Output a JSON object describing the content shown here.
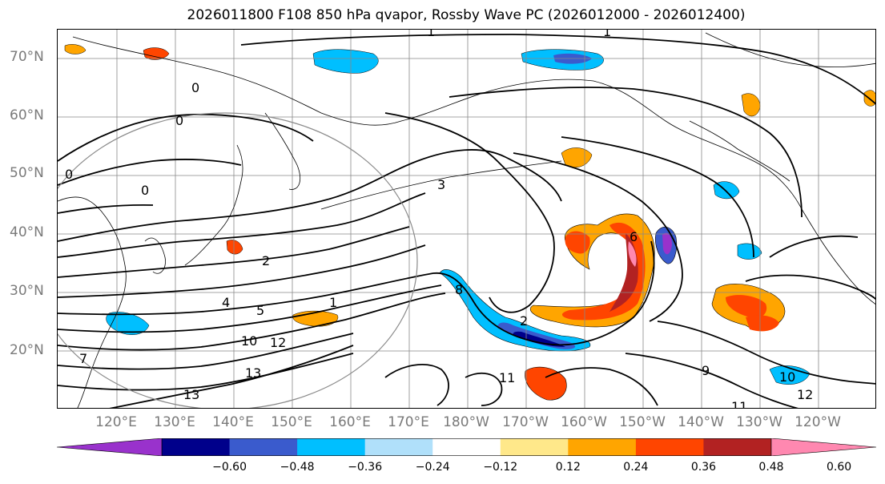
{
  "title": "2026011800 F108 850 hPa qvapor, Rossby Wave PC (2026012000 - 2026012400)",
  "lat_labels": [
    "70°N",
    "60°N",
    "50°N",
    "40°N",
    "30°N",
    "20°N"
  ],
  "lon_labels": [
    "120°E",
    "130°E",
    "140°E",
    "150°E",
    "160°E",
    "170°E",
    "180°W",
    "170°W",
    "160°W",
    "150°W",
    "140°W",
    "130°W",
    "120°W"
  ],
  "colorbar": {
    "colors": [
      "#9932cc",
      "#00008b",
      "#3a5bcd",
      "#00bfff",
      "#b0e0fa",
      "#ffffff",
      "#ffe88a",
      "#ffa500",
      "#ff4500",
      "#b22222",
      "#ff88b0"
    ],
    "tick_labels": [
      "−0.60",
      "−0.48",
      "−0.36",
      "−0.24",
      "−0.12",
      "0.12",
      "0.24",
      "0.36",
      "0.48",
      "0.60"
    ]
  },
  "contour_labels": [
    "0",
    "0",
    "0",
    "0",
    "1",
    "1",
    "1",
    "2",
    "2",
    "3",
    "4",
    "5",
    "6",
    "7",
    "8",
    "9",
    "10",
    "10",
    "11",
    "11",
    "12",
    "12",
    "13",
    "13"
  ],
  "field_colors": {
    "pos_light": "#ffe88a",
    "pos": "#ffa500",
    "pos_strong": "#ff4500",
    "pos_max": "#b22222",
    "pos_pink": "#ff88b0",
    "neg_light": "#b0e0fa",
    "neg": "#00bfff",
    "neg_strong": "#3a5bcd",
    "neg_max": "#00008b",
    "neg_purple": "#9932cc"
  }
}
